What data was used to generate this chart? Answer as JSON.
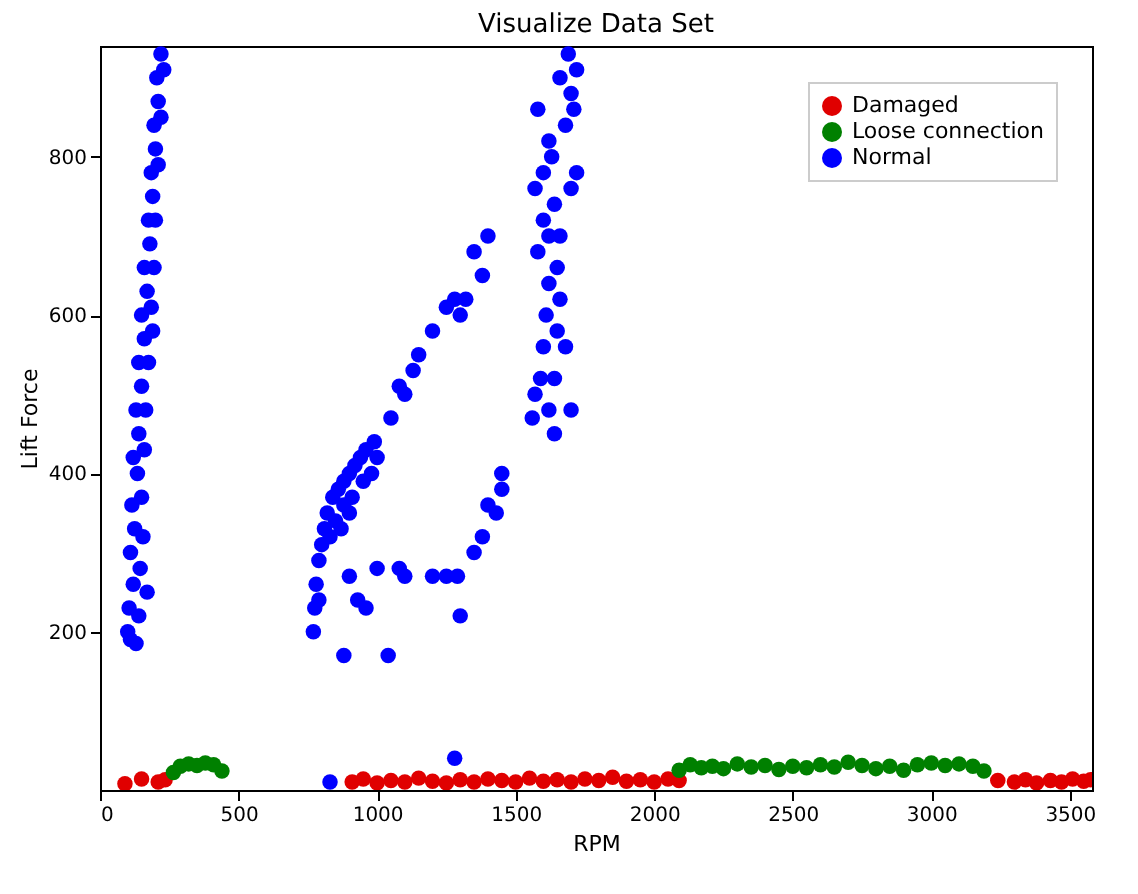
{
  "chart_data": {
    "type": "scatter",
    "title": "Visualize Data Set",
    "xlabel": "RPM",
    "ylabel": "Lift Force",
    "xlim": [
      0,
      3580
    ],
    "ylim": [
      0,
      940
    ],
    "xticks": [
      0,
      500,
      1000,
      1500,
      2000,
      2500,
      3000,
      3500
    ],
    "yticks": [
      200,
      400,
      600,
      800
    ],
    "grid": false,
    "legend": "top right",
    "marker": "circle",
    "series": [
      {
        "name": "Damaged",
        "color": "#e00000",
        "x": [
          90,
          150,
          210,
          235,
          910,
          950,
          1000,
          1050,
          1100,
          1150,
          1200,
          1250,
          1300,
          1350,
          1400,
          1450,
          1500,
          1550,
          1600,
          1650,
          1700,
          1750,
          1800,
          1850,
          1900,
          1950,
          2000,
          2050,
          2090,
          3240,
          3300,
          3340,
          3380,
          3430,
          3470,
          3510,
          3550,
          3575
        ],
        "values": [
          8,
          14,
          10,
          13,
          10,
          14,
          9,
          12,
          10,
          15,
          11,
          9,
          13,
          10,
          14,
          12,
          10,
          15,
          11,
          13,
          10,
          14,
          12,
          16,
          11,
          13,
          10,
          14,
          12,
          12,
          10,
          13,
          9,
          12,
          10,
          14,
          11,
          13
        ]
      },
      {
        "name": "Loose connection",
        "color": "#008000",
        "x": [
          265,
          290,
          320,
          350,
          380,
          410,
          440,
          2090,
          2130,
          2170,
          2210,
          2250,
          2300,
          2350,
          2400,
          2450,
          2500,
          2550,
          2600,
          2650,
          2700,
          2750,
          2800,
          2850,
          2900,
          2950,
          3000,
          3050,
          3100,
          3150,
          3190
        ],
        "values": [
          22,
          30,
          33,
          31,
          34,
          32,
          24,
          25,
          32,
          28,
          30,
          27,
          33,
          29,
          31,
          26,
          30,
          28,
          32,
          29,
          35,
          31,
          27,
          30,
          25,
          32,
          34,
          31,
          33,
          30,
          24
        ]
      },
      {
        "name": "Normal",
        "color": "#0000ff",
        "x": [
          100,
          110,
          130,
          105,
          120,
          140,
          110,
          125,
          145,
          115,
          135,
          150,
          120,
          140,
          160,
          130,
          150,
          165,
          140,
          160,
          175,
          150,
          170,
          185,
          160,
          180,
          195,
          175,
          190,
          200,
          185,
          200,
          210,
          195,
          210,
          220,
          205,
          220,
          230,
          170,
          155,
          190,
          770,
          775,
          780,
          790,
          800,
          810,
          820,
          840,
          860,
          880,
          900,
          920,
          940,
          960,
          990,
          1000,
          790,
          830,
          850,
          880,
          910,
          950,
          980,
          870,
          900,
          1050,
          1080,
          1100,
          1130,
          1150,
          1200,
          1250,
          1280,
          1300,
          1350,
          1380,
          1400,
          1320,
          880,
          1040,
          900,
          930,
          960,
          1000,
          1080,
          1100,
          1200,
          1250,
          1290,
          1300,
          1350,
          1380,
          1400,
          1450,
          1450,
          1430,
          1560,
          1570,
          1590,
          1600,
          1610,
          1620,
          1580,
          1600,
          1620,
          1640,
          1570,
          1600,
          1630,
          1650,
          1660,
          1680,
          1700,
          1640,
          1620,
          1680,
          1700,
          1720,
          1690,
          1660,
          1710,
          1580,
          1620,
          1660,
          1700,
          1720,
          1640,
          1650,
          830,
          1280
        ],
        "values": [
          200,
          190,
          185,
          230,
          260,
          220,
          300,
          330,
          280,
          360,
          400,
          370,
          420,
          450,
          430,
          480,
          510,
          480,
          540,
          570,
          540,
          600,
          630,
          610,
          660,
          690,
          660,
          720,
          750,
          720,
          780,
          810,
          790,
          840,
          870,
          850,
          900,
          930,
          910,
          250,
          320,
          580,
          200,
          230,
          260,
          290,
          310,
          330,
          350,
          370,
          380,
          390,
          400,
          410,
          420,
          430,
          440,
          420,
          240,
          320,
          340,
          360,
          370,
          390,
          400,
          330,
          350,
          470,
          510,
          500,
          530,
          550,
          580,
          610,
          620,
          600,
          680,
          650,
          700,
          620,
          170,
          170,
          270,
          240,
          230,
          280,
          280,
          270,
          270,
          270,
          270,
          220,
          300,
          320,
          360,
          400,
          380,
          350,
          470,
          500,
          520,
          560,
          600,
          640,
          680,
          720,
          700,
          740,
          760,
          780,
          800,
          660,
          620,
          560,
          480,
          450,
          480,
          840,
          880,
          910,
          930,
          900,
          860,
          860,
          820,
          700,
          760,
          780,
          520,
          580,
          10,
          40
        ]
      }
    ]
  }
}
